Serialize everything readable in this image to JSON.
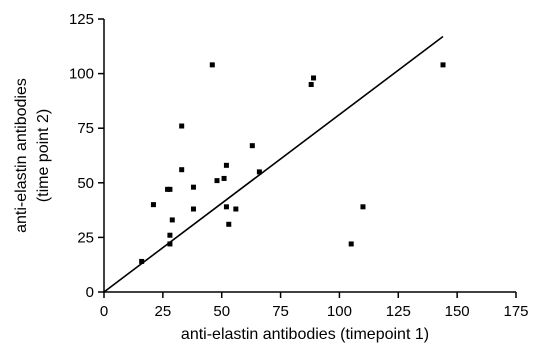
{
  "chart_data": {
    "type": "scatter",
    "xlabel": "anti-elastin antibodies (timepoint 1)",
    "ylabel_lines": [
      "anti-elastin antibodies",
      "(time point 2)"
    ],
    "xlim": [
      0,
      175
    ],
    "ylim": [
      0,
      125
    ],
    "x_ticks": [
      0,
      25,
      50,
      75,
      100,
      125,
      150,
      175
    ],
    "y_ticks": [
      0,
      25,
      50,
      75,
      100,
      125
    ],
    "grid": false,
    "points": [
      {
        "x": 16,
        "y": 14
      },
      {
        "x": 21,
        "y": 40
      },
      {
        "x": 27,
        "y": 47
      },
      {
        "x": 28,
        "y": 47
      },
      {
        "x": 28,
        "y": 26
      },
      {
        "x": 28,
        "y": 22
      },
      {
        "x": 29,
        "y": 33
      },
      {
        "x": 33,
        "y": 76
      },
      {
        "x": 33,
        "y": 56
      },
      {
        "x": 38,
        "y": 48
      },
      {
        "x": 38,
        "y": 38
      },
      {
        "x": 46,
        "y": 104
      },
      {
        "x": 48,
        "y": 51
      },
      {
        "x": 51,
        "y": 52
      },
      {
        "x": 52,
        "y": 39
      },
      {
        "x": 52,
        "y": 58
      },
      {
        "x": 53,
        "y": 31
      },
      {
        "x": 56,
        "y": 38
      },
      {
        "x": 63,
        "y": 67
      },
      {
        "x": 66,
        "y": 55
      },
      {
        "x": 88,
        "y": 95
      },
      {
        "x": 89,
        "y": 98
      },
      {
        "x": 105,
        "y": 22
      },
      {
        "x": 110,
        "y": 39
      },
      {
        "x": 144,
        "y": 104
      }
    ],
    "fit_line": {
      "x1": 0,
      "y1": 0,
      "x2": 144,
      "y2": 117
    }
  }
}
